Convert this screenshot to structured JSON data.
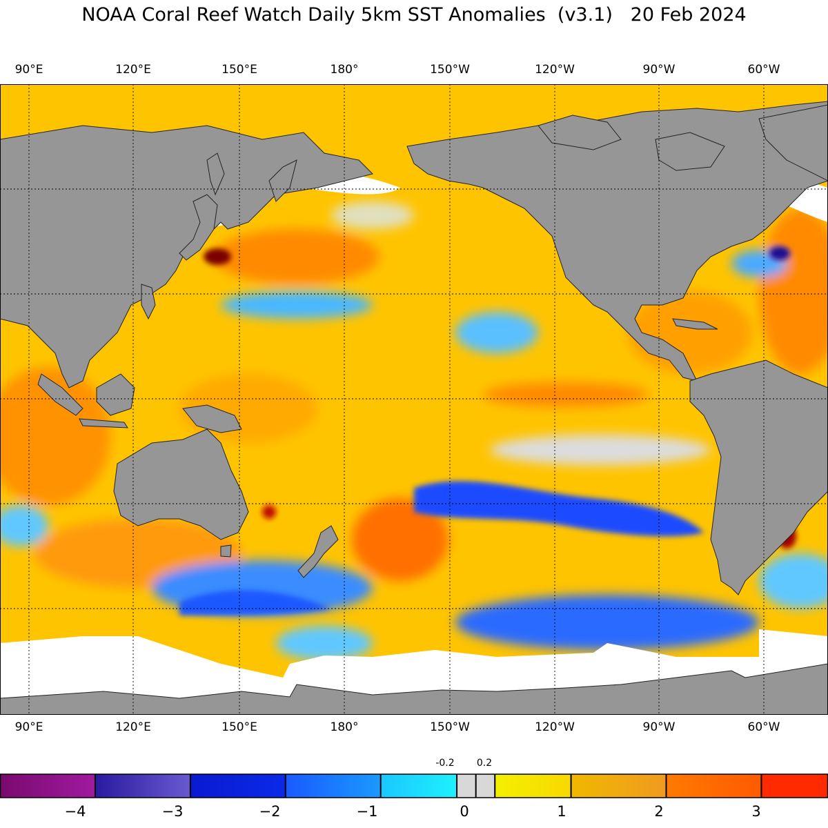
{
  "title": "NOAA Coral Reef Watch Daily 5km SST Anomalies  (v3.1)   20 Feb 2024",
  "longitude_labels": [
    "90°E",
    "120°E",
    "150°E",
    "180°",
    "150°W",
    "120°W",
    "90°W",
    "60°W"
  ],
  "colorbar": {
    "tick_labels": [
      "−4",
      "−3",
      "−2",
      "−1",
      "0",
      "1",
      "2",
      "3"
    ],
    "small_labels": [
      "-0.2",
      "0.2"
    ],
    "range": [
      -5,
      3.7
    ],
    "colors": {
      "deep_negative": "#7a0a6e",
      "minus4": "#2a1aa0",
      "minus3": "#0a1ad0",
      "minus2": "#1a5aff",
      "minus1": "#1ac8ff",
      "neutral": "#d8d8d8",
      "plus0": "#f4f000",
      "plus1": "#f0b800",
      "plus2": "#ff7a00",
      "plus3": "#ff2a00"
    }
  },
  "map_colors": {
    "land": "#969696",
    "ice": "#ffffff",
    "warm": "#ffb400",
    "hot": "#ff7000",
    "cool": "#3fb8ff",
    "cold": "#1a3cff"
  }
}
